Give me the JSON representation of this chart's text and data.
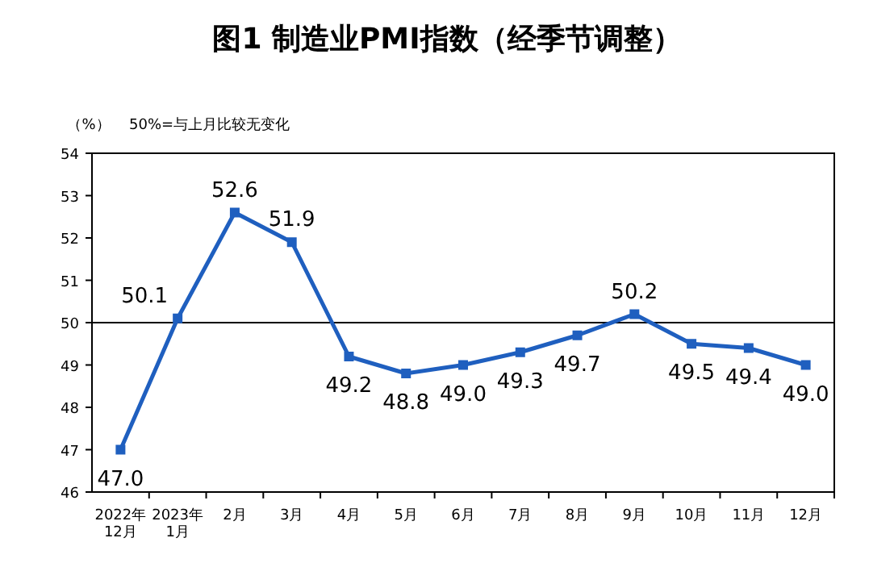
{
  "chart_data": {
    "type": "line",
    "title": "图1 制造业PMI指数（经季节调整）",
    "ylabel": "（%）",
    "annotations": [
      "50%=与上月比较无变化"
    ],
    "categories": [
      "2022年\n12月",
      "2023年\n1月",
      "2月",
      "3月",
      "4月",
      "5月",
      "6月",
      "7月",
      "8月",
      "9月",
      "10月",
      "11月",
      "12月"
    ],
    "series": [
      {
        "color": "#1f5fbf",
        "values": [
          47.0,
          50.1,
          52.6,
          51.9,
          49.2,
          48.8,
          49.0,
          49.3,
          49.7,
          50.2,
          49.5,
          49.4,
          49.0
        ],
        "value_labels": [
          "47.0",
          "50.1",
          "52.6",
          "51.9",
          "49.2",
          "48.8",
          "49.0",
          "49.3",
          "49.7",
          "50.2",
          "49.5",
          "49.4",
          "49.0"
        ]
      }
    ],
    "ylim": [
      46,
      54
    ],
    "yticks": [
      46,
      47,
      48,
      49,
      50,
      51,
      52,
      53,
      54
    ],
    "ref_lines": [
      {
        "axis": "y",
        "value": 50,
        "color": "#000000"
      }
    ],
    "marker": "square",
    "line_style": "solid"
  }
}
